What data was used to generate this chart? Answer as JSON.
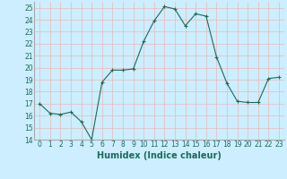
{
  "x": [
    0,
    1,
    2,
    3,
    4,
    5,
    6,
    7,
    8,
    9,
    10,
    11,
    12,
    13,
    14,
    15,
    16,
    17,
    18,
    19,
    20,
    21,
    22,
    23
  ],
  "y": [
    17,
    16.2,
    16.1,
    16.3,
    15.5,
    14.0,
    18.8,
    19.8,
    19.8,
    19.9,
    22.2,
    23.9,
    25.1,
    24.9,
    23.5,
    24.5,
    24.3,
    20.9,
    18.7,
    17.2,
    17.1,
    17.1,
    19.1,
    19.2
  ],
  "line_color": "#1a6b5a",
  "marker": "+",
  "marker_size": 3,
  "marker_color": "#1a6b5a",
  "bg_color": "#cceeff",
  "grid_color": "#e8b8b8",
  "xlabel": "Humidex (Indice chaleur)",
  "ylim": [
    14,
    25.5
  ],
  "xlim": [
    -0.5,
    23.5
  ],
  "yticks": [
    14,
    15,
    16,
    17,
    18,
    19,
    20,
    21,
    22,
    23,
    24,
    25
  ],
  "xticks": [
    0,
    1,
    2,
    3,
    4,
    5,
    6,
    7,
    8,
    9,
    10,
    11,
    12,
    13,
    14,
    15,
    16,
    17,
    18,
    19,
    20,
    21,
    22,
    23
  ],
  "xtick_labels": [
    "0",
    "1",
    "2",
    "3",
    "4",
    "5",
    "6",
    "7",
    "8",
    "9",
    "10",
    "11",
    "12",
    "13",
    "14",
    "15",
    "16",
    "17",
    "18",
    "19",
    "20",
    "21",
    "22",
    "23"
  ],
  "tick_fontsize": 5.5,
  "xlabel_fontsize": 7
}
